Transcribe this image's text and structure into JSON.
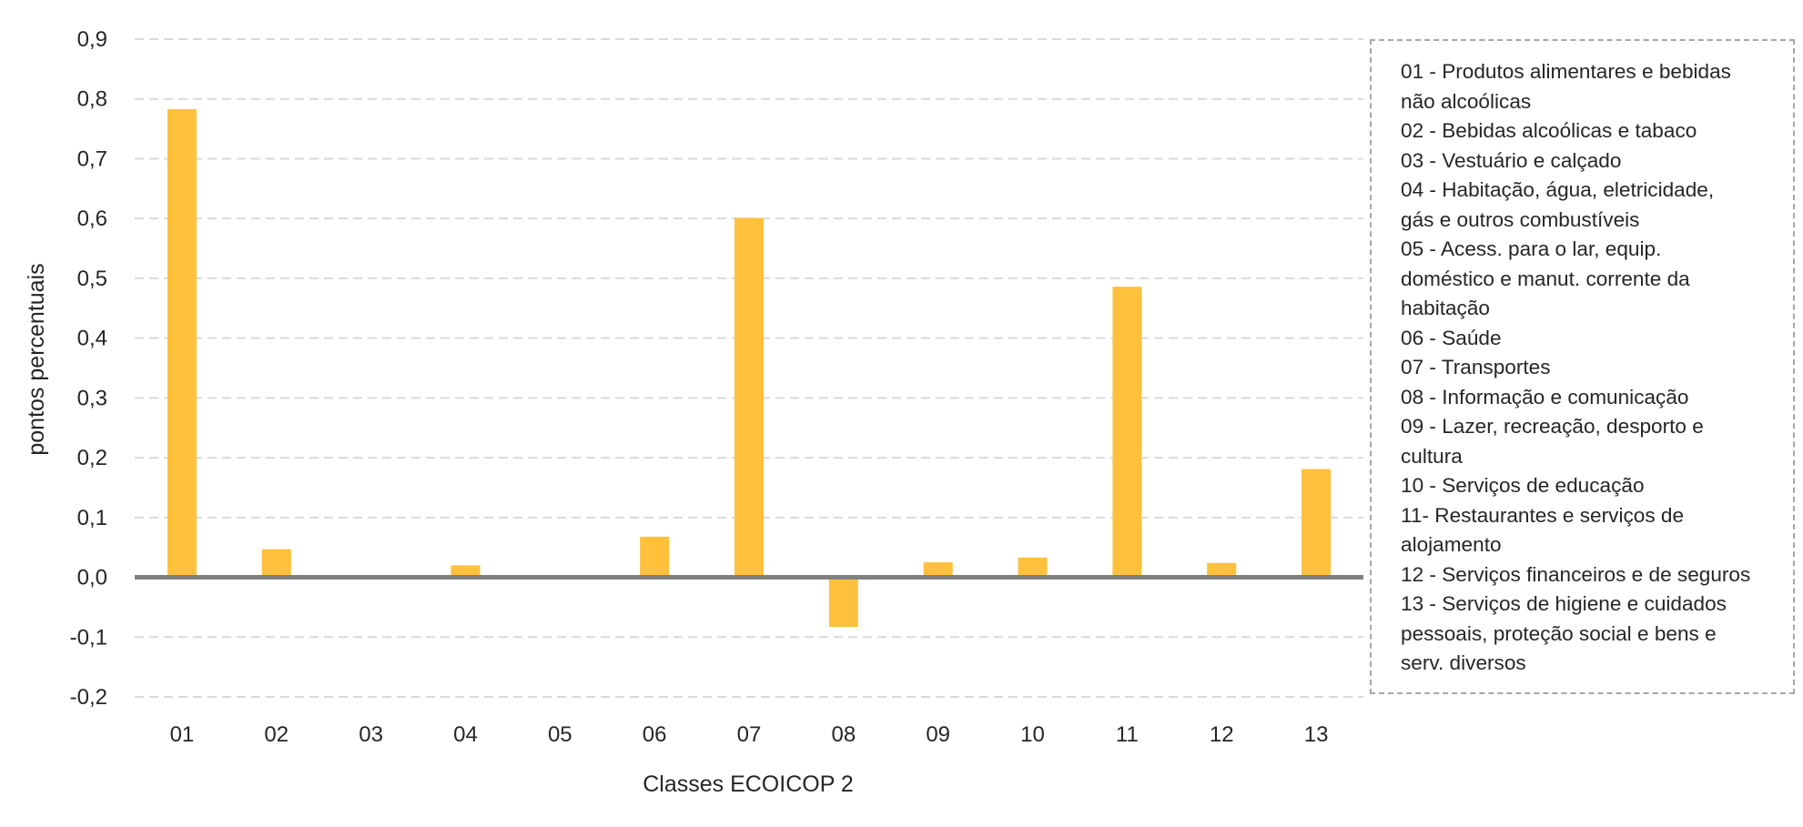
{
  "chart_data": {
    "type": "bar",
    "xlabel": "Classes ECOICOP 2",
    "ylabel": "pontos percentuais",
    "ylim": [
      -0.2,
      0.9
    ],
    "yticks": [
      "-0,2",
      "-0,1",
      "0,0",
      "0,1",
      "0,2",
      "0,3",
      "0,4",
      "0,5",
      "0,6",
      "0,7",
      "0,8",
      "0,9"
    ],
    "grid": true,
    "legend_position": "right",
    "categories": [
      "01",
      "02",
      "03",
      "04",
      "05",
      "06",
      "07",
      "08",
      "09",
      "10",
      "11",
      "12",
      "13"
    ],
    "values": [
      0.783,
      0.047,
      -0.002,
      0.02,
      0.003,
      0.068,
      0.601,
      -0.083,
      0.025,
      0.033,
      0.486,
      0.024,
      0.181
    ],
    "bar_color": "#FFC13B",
    "zero_line_color": "#808080",
    "grid_color": "#d9d9d9",
    "legend": [
      "01 - Produtos alimentares e bebidas",
      "não alcoólicas",
      "02 - Bebidas alcoólicas e tabaco",
      "03 - Vestuário e calçado",
      "04 - Habitação, água, eletricidade,",
      "gás e outros combustíveis",
      "05 - Acess. para o lar, equip.",
      "doméstico e manut. corrente da",
      "habitação",
      "06 - Saúde",
      "07 - Transportes",
      "08 - Informação e comunicação",
      "09 - Lazer, recreação, desporto e",
      "cultura",
      "10 - Serviços de educação",
      "11- Restaurantes e serviços de",
      "alojamento",
      "12 - Serviços financeiros e de seguros",
      "13 - Serviços de higiene e cuidados",
      "pessoais, proteção social e bens e",
      "serv. diversos"
    ]
  }
}
